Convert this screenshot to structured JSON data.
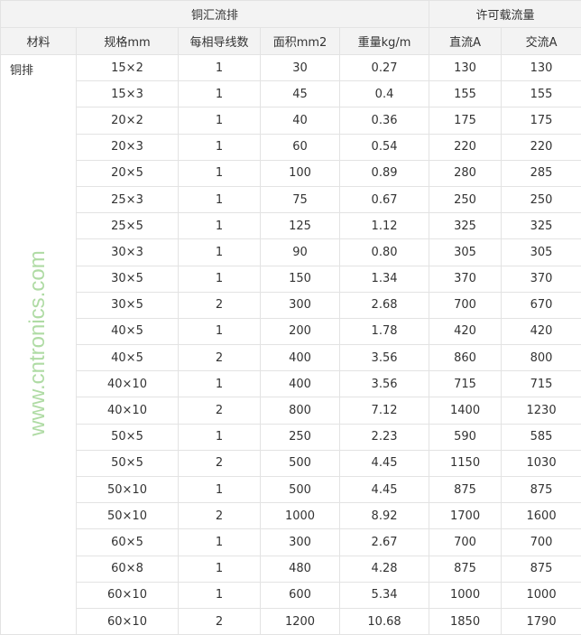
{
  "header": {
    "group1": "铜汇流排",
    "group2": "许可载流量",
    "columns": [
      "材料",
      "规格mm",
      "每相导线数",
      "面积mm2",
      "重量kg/m",
      "直流A",
      "交流A"
    ]
  },
  "material": "铜排",
  "rows": [
    [
      "15×2",
      "1",
      "30",
      "0.27",
      "130",
      "130"
    ],
    [
      "15×3",
      "1",
      "45",
      "0.4",
      "155",
      "155"
    ],
    [
      "20×2",
      "1",
      "40",
      "0.36",
      "175",
      "175"
    ],
    [
      "20×3",
      "1",
      "60",
      "0.54",
      "220",
      "220"
    ],
    [
      "20×5",
      "1",
      "100",
      "0.89",
      "280",
      "285"
    ],
    [
      "25×3",
      "1",
      "75",
      "0.67",
      "250",
      "250"
    ],
    [
      "25×5",
      "1",
      "125",
      "1.12",
      "325",
      "325"
    ],
    [
      "30×3",
      "1",
      "90",
      "0.80",
      "305",
      "305"
    ],
    [
      "30×5",
      "1",
      "150",
      "1.34",
      "370",
      "370"
    ],
    [
      "30×5",
      "2",
      "300",
      "2.68",
      "700",
      "670"
    ],
    [
      "40×5",
      "1",
      "200",
      "1.78",
      "420",
      "420"
    ],
    [
      "40×5",
      "2",
      "400",
      "3.56",
      "860",
      "800"
    ],
    [
      "40×10",
      "1",
      "400",
      "3.56",
      "715",
      "715"
    ],
    [
      "40×10",
      "2",
      "800",
      "7.12",
      "1400",
      "1230"
    ],
    [
      "50×5",
      "1",
      "250",
      "2.23",
      "590",
      "585"
    ],
    [
      "50×5",
      "2",
      "500",
      "4.45",
      "1150",
      "1030"
    ],
    [
      "50×10",
      "1",
      "500",
      "4.45",
      "875",
      "875"
    ],
    [
      "50×10",
      "2",
      "1000",
      "8.92",
      "1700",
      "1600"
    ],
    [
      "60×5",
      "1",
      "300",
      "2.67",
      "700",
      "700"
    ],
    [
      "60×8",
      "1",
      "480",
      "4.28",
      "875",
      "875"
    ],
    [
      "60×10",
      "1",
      "600",
      "5.34",
      "1000",
      "1000"
    ],
    [
      "60×10",
      "2",
      "1200",
      "10.68",
      "1850",
      "1790"
    ]
  ],
  "watermark": "www.cntronics.com"
}
